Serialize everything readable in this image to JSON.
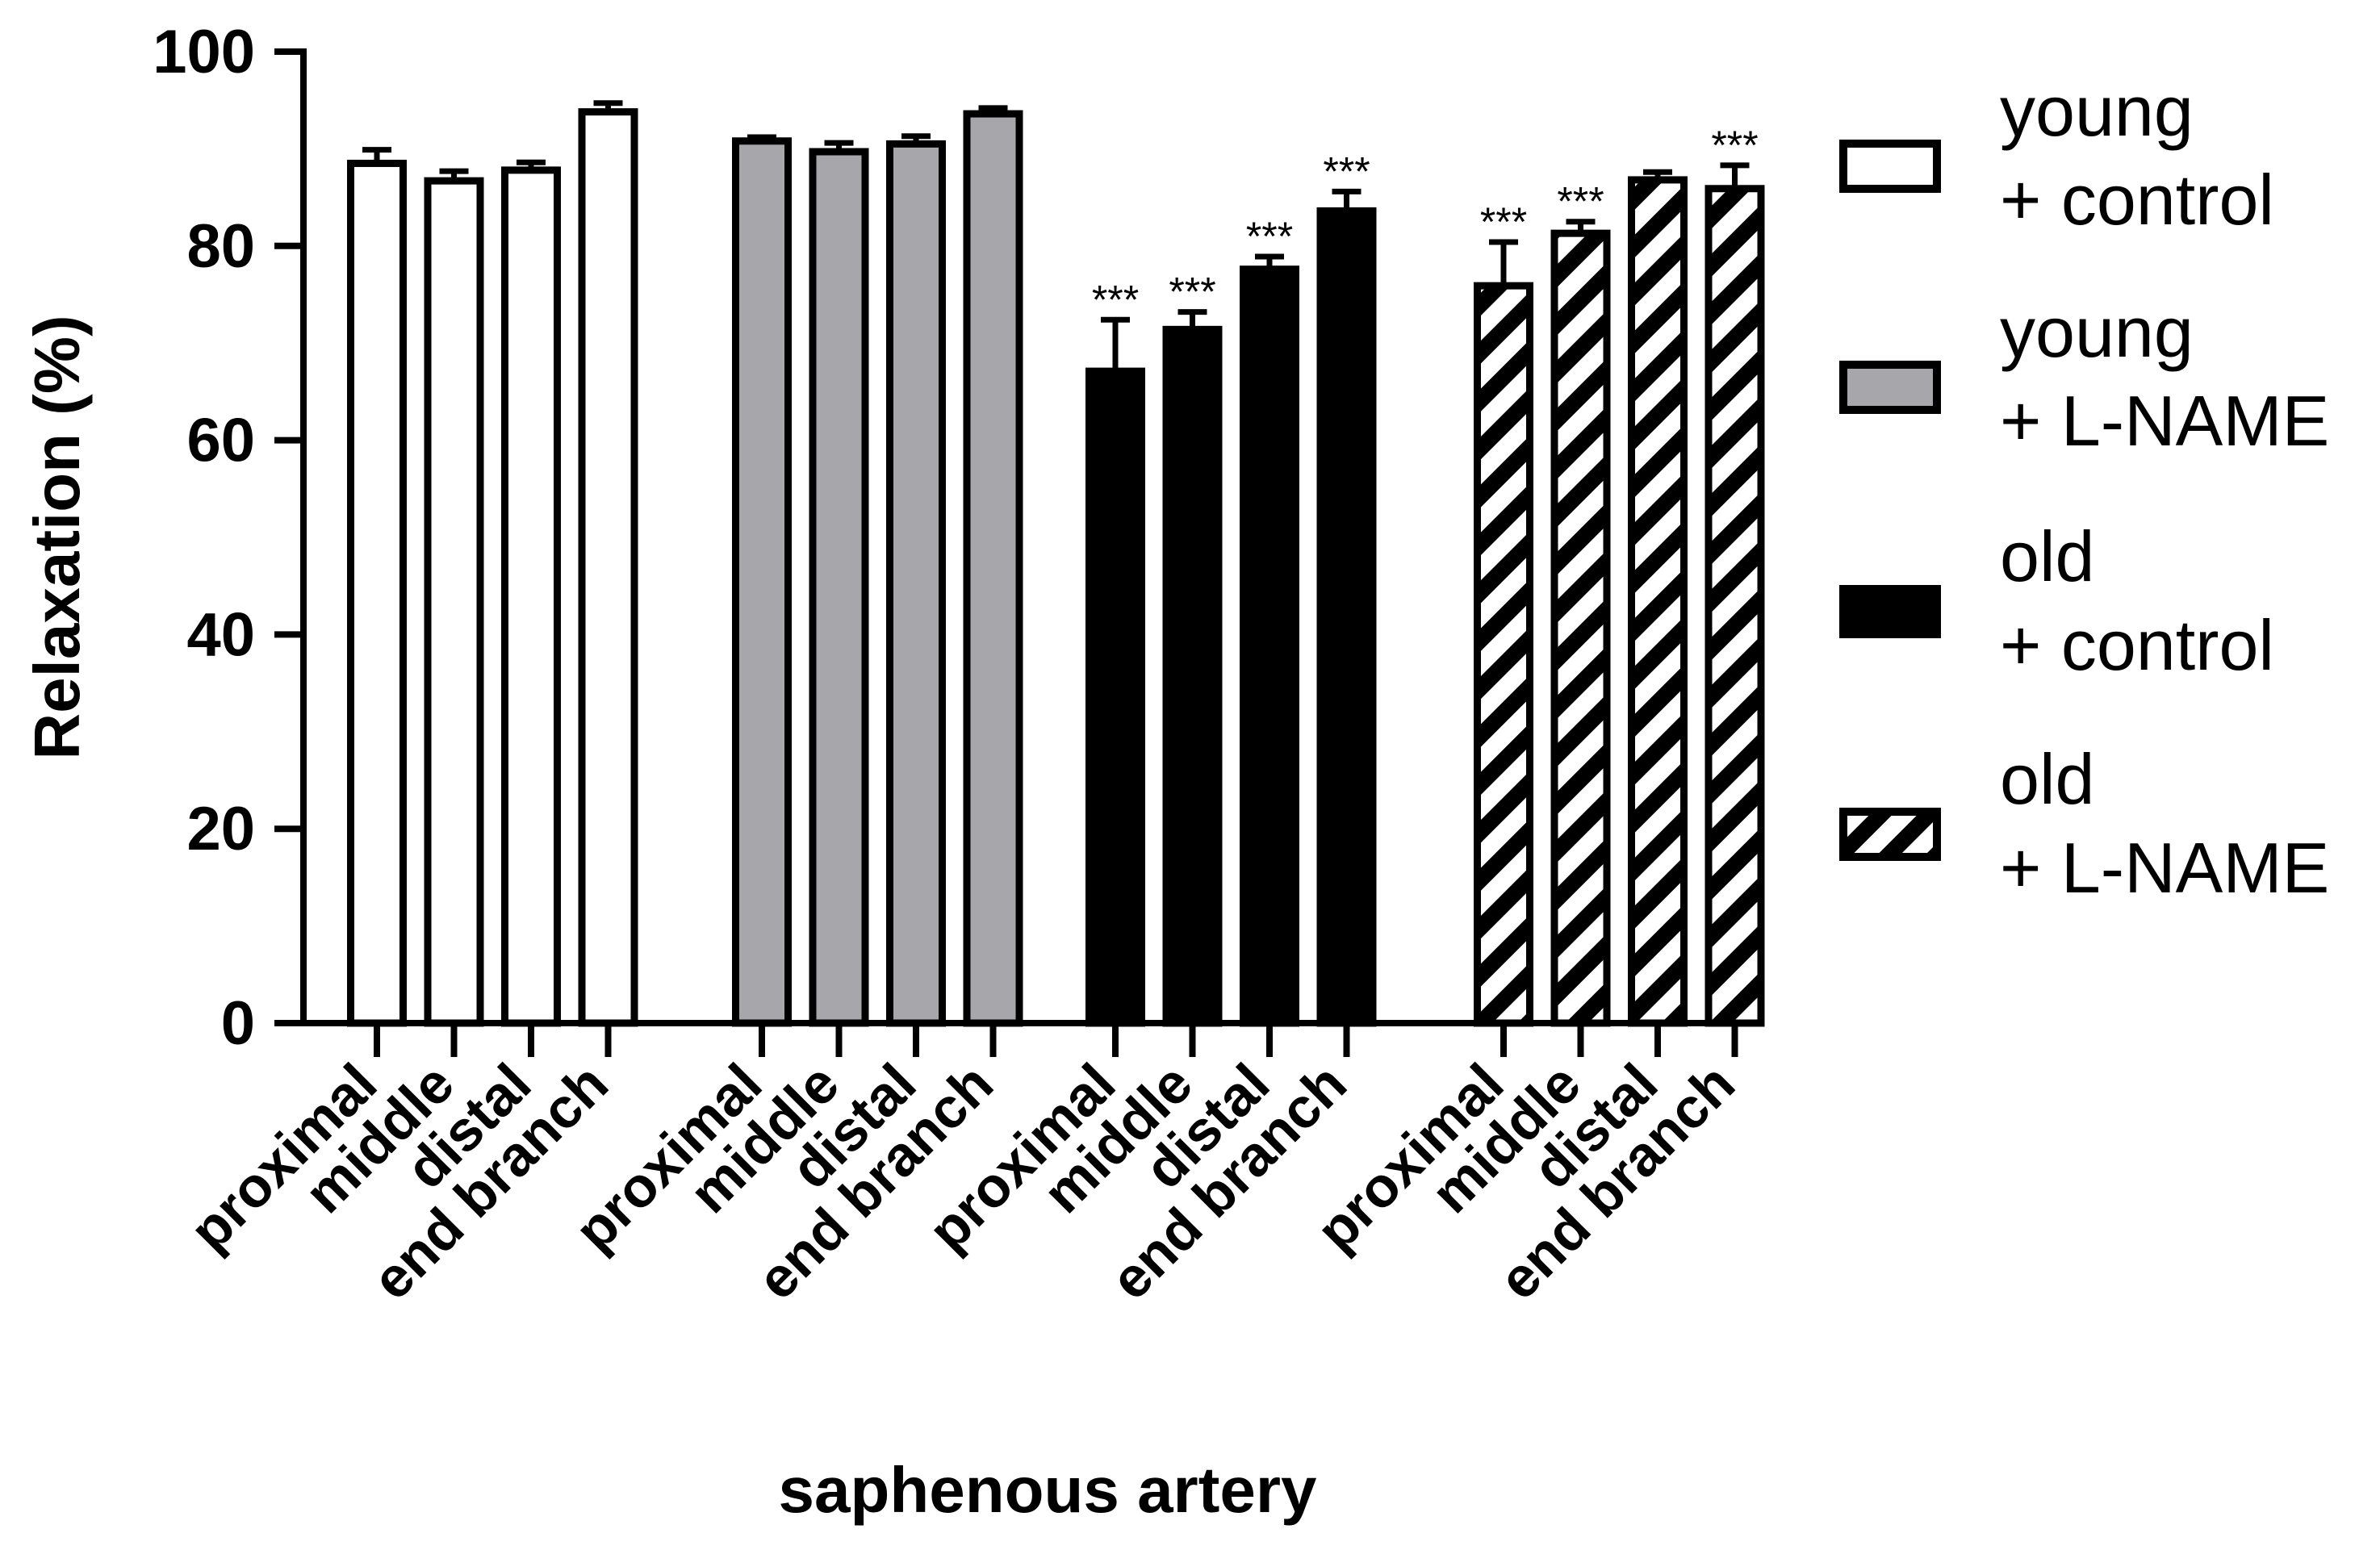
{
  "chart_data": {
    "type": "bar",
    "title": "",
    "xlabel": "saphenous artery",
    "ylabel": "Relaxation (%)",
    "ylim": [
      0,
      100
    ],
    "yticks": [
      0,
      20,
      40,
      60,
      80,
      100
    ],
    "grid": false,
    "legend_position": "right",
    "categories": [
      "proximal",
      "middle",
      "distal",
      "end branch"
    ],
    "series": [
      {
        "name": "young + control",
        "legend_lines": [
          "young",
          "+ control"
        ],
        "fill": "white",
        "values": [
          88.5,
          86.7,
          87.8,
          93.8
        ],
        "errors": [
          1.4,
          1.0,
          0.8,
          0.9
        ],
        "significance": [
          "",
          "",
          "",
          ""
        ]
      },
      {
        "name": "young + L-NAME",
        "legend_lines": [
          "young",
          "+ L-NAME"
        ],
        "fill": "gray",
        "values": [
          90.8,
          89.7,
          90.5,
          93.6
        ],
        "errors": [
          0.4,
          0.9,
          0.8,
          0.6
        ],
        "significance": [
          "",
          "",
          "",
          ""
        ]
      },
      {
        "name": "old + control",
        "legend_lines": [
          "old",
          "+ control"
        ],
        "fill": "black",
        "values": [
          67.1,
          71.4,
          77.6,
          83.6
        ],
        "errors": [
          5.3,
          1.8,
          1.3,
          2.0
        ],
        "significance": [
          "***",
          "***",
          "***",
          "***"
        ]
      },
      {
        "name": "old + L-NAME",
        "legend_lines": [
          "old",
          "+ L-NAME"
        ],
        "fill": "hatched",
        "values": [
          75.9,
          81.3,
          86.8,
          85.9
        ],
        "errors": [
          4.5,
          1.2,
          0.8,
          2.4
        ],
        "significance": [
          "***",
          "***",
          "",
          "***"
        ]
      }
    ]
  },
  "colors": {
    "ink": "#000000",
    "background": "#ffffff",
    "gray_fill": "#a7a6ab",
    "black_fill": "#000000"
  }
}
